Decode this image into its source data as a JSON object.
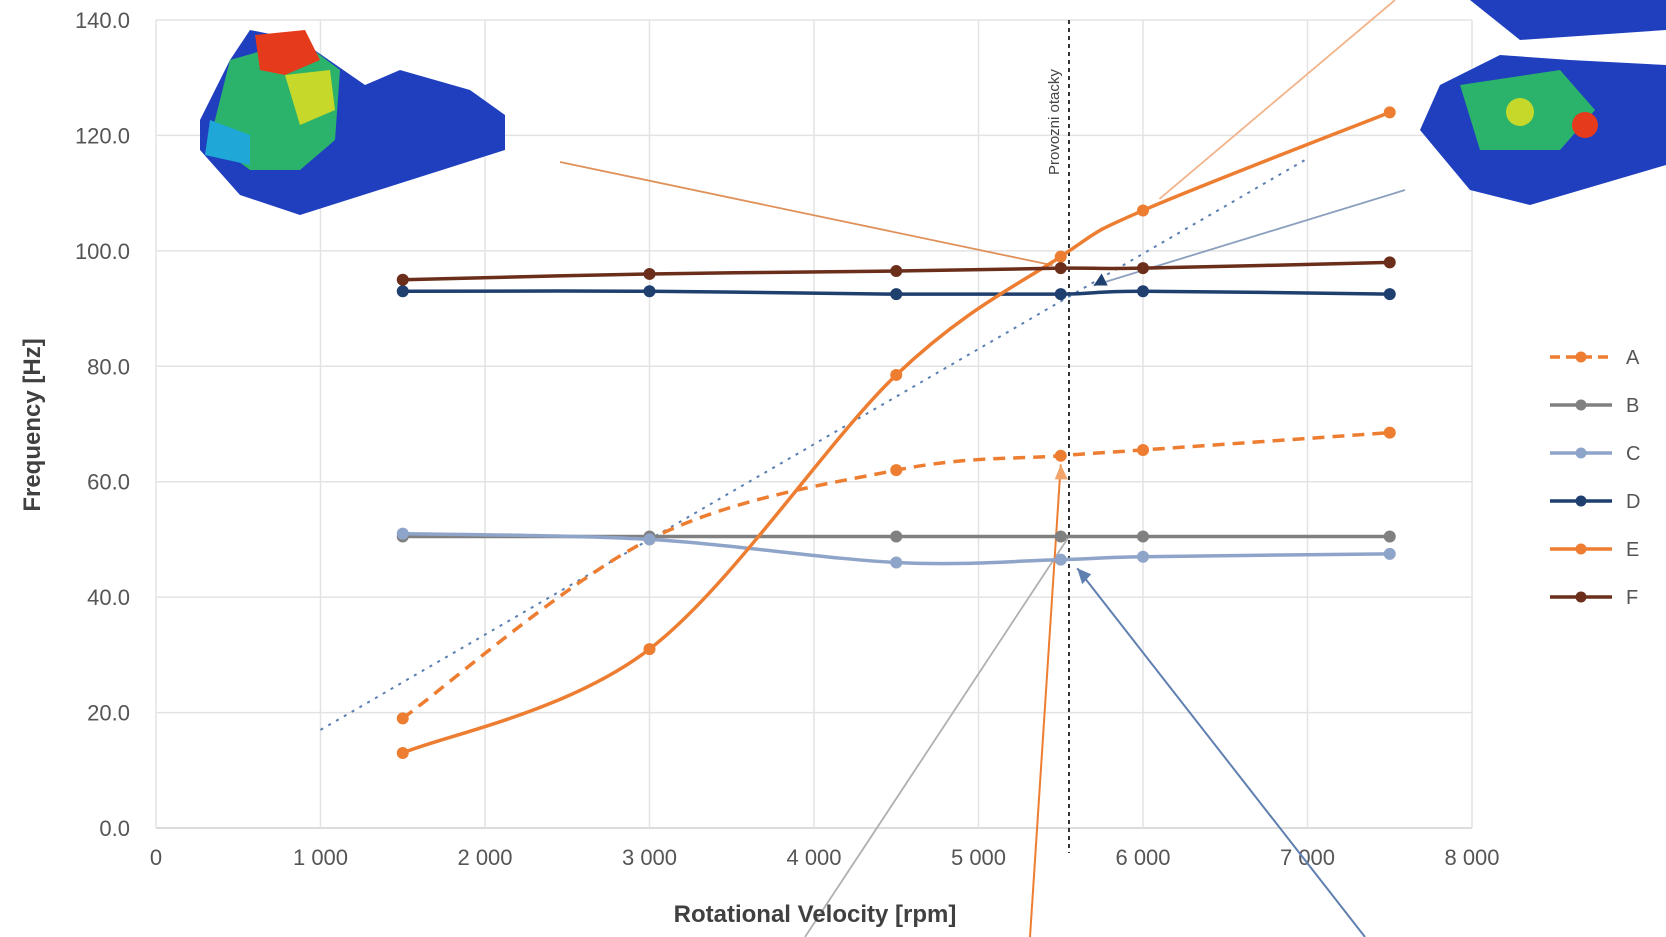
{
  "chart_data": {
    "type": "line",
    "title": "",
    "xlabel": "Rotational Velocity [rpm]",
    "ylabel": "Frequency [Hz]",
    "xlim": [
      0,
      8000
    ],
    "ylim": [
      0,
      140
    ],
    "x_ticks": [
      "0",
      "1 000",
      "2 000",
      "3 000",
      "4 000",
      "5 000",
      "6 000",
      "7 000",
      "8 000"
    ],
    "y_ticks": [
      "0.0",
      "20.0",
      "40.0",
      "60.0",
      "80.0",
      "100.0",
      "120.0",
      "140.0"
    ],
    "grid": true,
    "legend_position": "right",
    "x": [
      1500,
      3000,
      4500,
      5500,
      6000,
      7500
    ],
    "series": [
      {
        "name": "A",
        "values": [
          19,
          50,
          62,
          64.5,
          65.5,
          68.5
        ],
        "color": "#ed7d31",
        "dashed": true
      },
      {
        "name": "B",
        "values": [
          50.5,
          50.5,
          50.5,
          50.5,
          50.5,
          50.5
        ],
        "color": "#808080",
        "dashed": false
      },
      {
        "name": "C",
        "values": [
          51,
          50,
          46,
          46.5,
          47,
          47.5
        ],
        "color": "#8ea4c8",
        "dashed": false
      },
      {
        "name": "D",
        "values": [
          93,
          93,
          92.5,
          92.5,
          93,
          92.5
        ],
        "color": "#1f3f6e",
        "dashed": false
      },
      {
        "name": "E",
        "values": [
          13,
          31,
          78.5,
          99,
          107,
          124
        ],
        "color": "#ed7d31",
        "dashed": false
      },
      {
        "name": "F",
        "values": [
          95,
          96,
          96.5,
          97,
          97,
          98
        ],
        "color": "#6b2e1a",
        "dashed": false
      }
    ],
    "reference_line": {
      "x": 5550,
      "label": "Provozni otacky"
    }
  },
  "colors": {
    "grid": "#e3e3e3",
    "axis": "#d0d0d0",
    "excitation": "#5a7fb0"
  }
}
